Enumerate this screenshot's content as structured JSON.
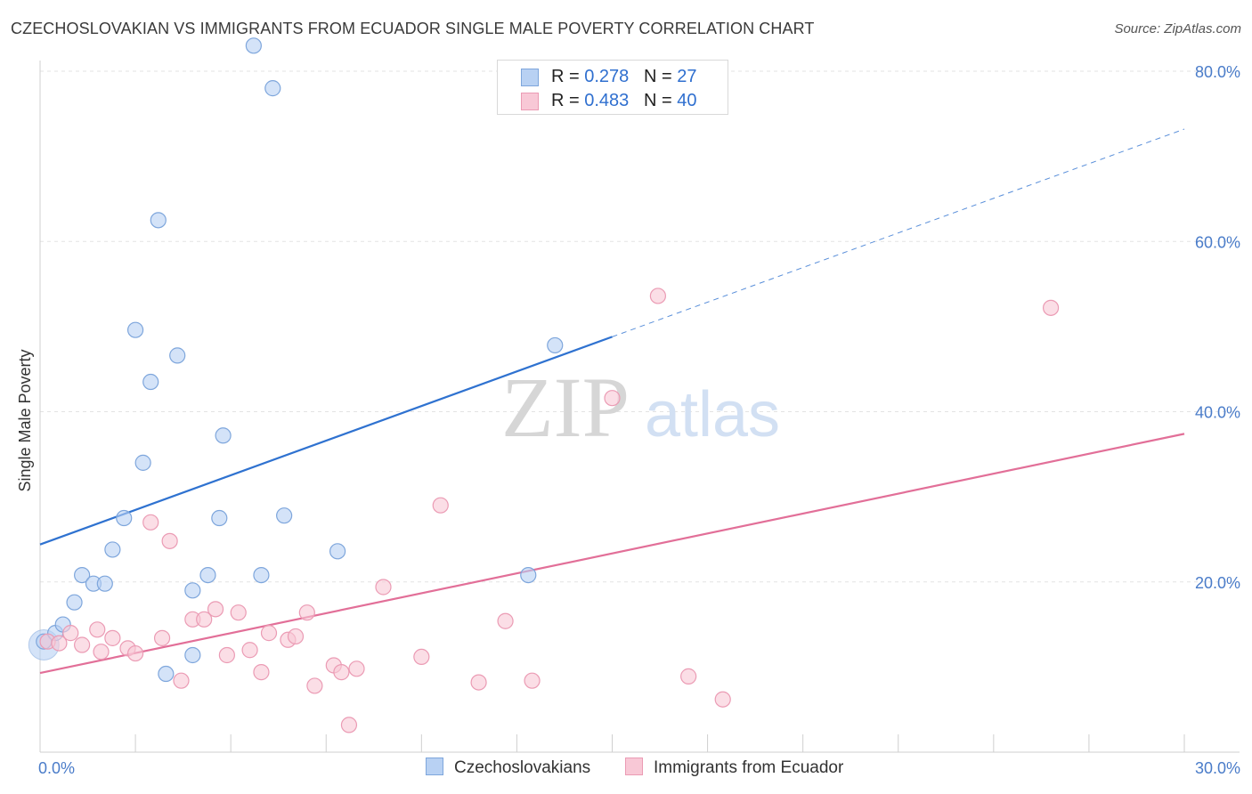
{
  "title": "CZECHOSLOVAKIAN VS IMMIGRANTS FROM ECUADOR SINGLE MALE POVERTY CORRELATION CHART",
  "source": "Source: ZipAtlas.com",
  "watermark": {
    "zip": "ZIP",
    "atlas": "atlas"
  },
  "legend": {
    "rows": [
      {
        "r_label": "R = ",
        "r_value": "0.278",
        "n_label": "N = ",
        "n_value": "27"
      },
      {
        "r_label": "R = ",
        "r_value": "0.483",
        "n_label": "N = ",
        "n_value": "40"
      }
    ]
  },
  "colors": {
    "blue_fill": "#b8d1f3",
    "blue_stroke": "#7ea6dc",
    "blue_line": "#2f72d0",
    "pink_fill": "#f8c8d6",
    "pink_stroke": "#eb9bb4",
    "pink_line": "#e26f98",
    "axis_text": "#4a7cc9",
    "grid": "#e3e3e3"
  },
  "chart_data": {
    "type": "scatter",
    "title": "CZECHOSLOVAKIAN VS IMMIGRANTS FROM ECUADOR SINGLE MALE POVERTY CORRELATION CHART",
    "xlabel": "",
    "ylabel": "Single Male Poverty",
    "xlim": [
      0,
      30
    ],
    "ylim": [
      0,
      80
    ],
    "x_tick_labels": [
      "0.0%",
      "30.0%"
    ],
    "y_ticks": [
      20,
      40,
      60,
      80
    ],
    "y_tick_labels": [
      "20.0%",
      "40.0%",
      "60.0%",
      "80.0%"
    ],
    "grid": true,
    "legend_position": "bottom",
    "series": [
      {
        "name": "Czechoslovakians",
        "color": "#b8d1f3",
        "points": [
          [
            0.1,
            13.0
          ],
          [
            0.4,
            14.0
          ],
          [
            0.6,
            15.0
          ],
          [
            0.9,
            17.6
          ],
          [
            1.1,
            20.8
          ],
          [
            1.4,
            19.8
          ],
          [
            1.7,
            19.8
          ],
          [
            1.9,
            23.8
          ],
          [
            2.2,
            27.5
          ],
          [
            2.5,
            49.6
          ],
          [
            2.7,
            34.0
          ],
          [
            2.9,
            43.5
          ],
          [
            3.1,
            62.5
          ],
          [
            3.3,
            9.2
          ],
          [
            3.6,
            46.6
          ],
          [
            4.0,
            19.0
          ],
          [
            4.0,
            11.4
          ],
          [
            4.4,
            20.8
          ],
          [
            4.7,
            27.5
          ],
          [
            4.8,
            37.2
          ],
          [
            5.6,
            83.0
          ],
          [
            5.8,
            20.8
          ],
          [
            6.1,
            78.0
          ],
          [
            6.4,
            27.8
          ],
          [
            7.8,
            23.6
          ],
          [
            12.8,
            20.8
          ],
          [
            13.5,
            47.8
          ]
        ],
        "trend": {
          "x": [
            0,
            15
          ],
          "y": [
            24.4,
            48.8
          ],
          "dashed_to": [
            30,
            73.2
          ]
        }
      },
      {
        "name": "Immigrants from Ecuador",
        "color": "#f8c8d6",
        "points": [
          [
            0.2,
            13.0
          ],
          [
            0.5,
            12.8
          ],
          [
            0.8,
            14.0
          ],
          [
            1.1,
            12.6
          ],
          [
            1.5,
            14.4
          ],
          [
            1.6,
            11.8
          ],
          [
            1.9,
            13.4
          ],
          [
            2.3,
            12.2
          ],
          [
            2.5,
            11.6
          ],
          [
            2.9,
            27.0
          ],
          [
            3.2,
            13.4
          ],
          [
            3.4,
            24.8
          ],
          [
            3.7,
            8.4
          ],
          [
            4.0,
            15.6
          ],
          [
            4.3,
            15.6
          ],
          [
            4.6,
            16.8
          ],
          [
            4.9,
            11.4
          ],
          [
            5.2,
            16.4
          ],
          [
            5.5,
            12.0
          ],
          [
            5.8,
            9.4
          ],
          [
            6.0,
            14.0
          ],
          [
            6.5,
            13.2
          ],
          [
            6.7,
            13.6
          ],
          [
            7.0,
            16.4
          ],
          [
            7.2,
            7.8
          ],
          [
            7.7,
            10.2
          ],
          [
            7.9,
            9.4
          ],
          [
            8.1,
            3.2
          ],
          [
            8.3,
            9.8
          ],
          [
            9.0,
            19.4
          ],
          [
            10.0,
            11.2
          ],
          [
            10.5,
            29.0
          ],
          [
            11.5,
            8.2
          ],
          [
            12.2,
            15.4
          ],
          [
            12.9,
            8.4
          ],
          [
            15.0,
            41.6
          ],
          [
            16.2,
            53.6
          ],
          [
            17.0,
            8.9
          ],
          [
            17.9,
            6.2
          ],
          [
            26.5,
            52.2
          ]
        ],
        "trend": {
          "x": [
            0,
            30
          ],
          "y": [
            9.3,
            37.4
          ]
        }
      }
    ]
  }
}
